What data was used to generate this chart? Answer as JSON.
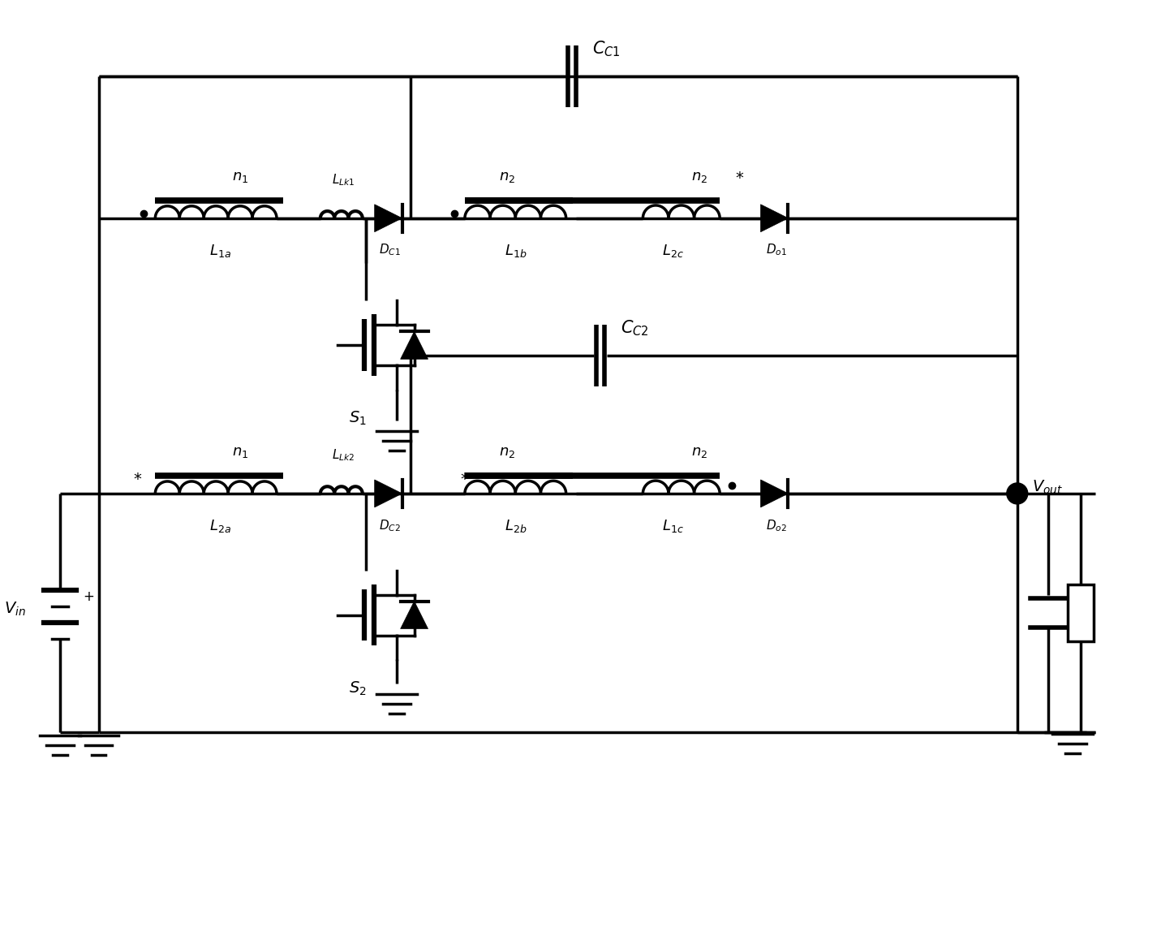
{
  "bg_color": "#ffffff",
  "lc": "#000000",
  "lw": 2.5,
  "figsize": [
    14.31,
    11.53
  ],
  "dpi": 100
}
